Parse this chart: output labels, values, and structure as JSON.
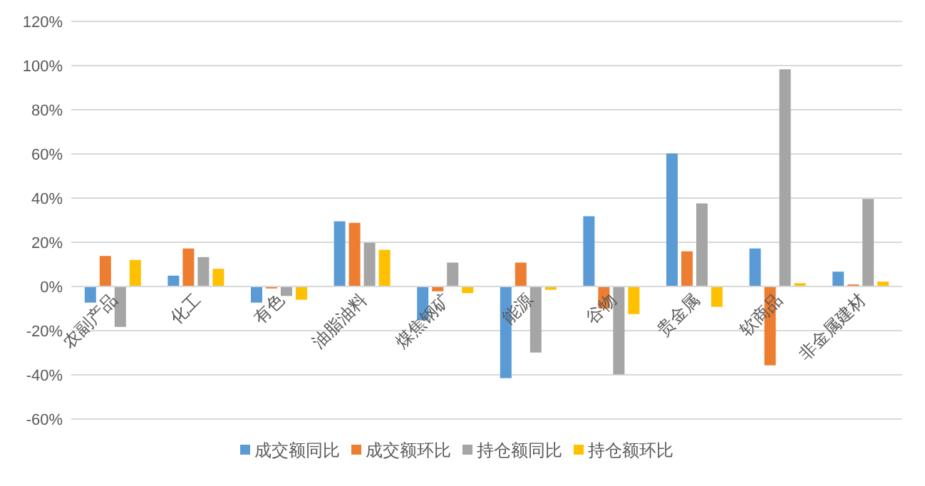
{
  "chart_data": {
    "type": "bar",
    "categories": [
      "农副产品",
      "化工",
      "有色",
      "油脂油料",
      "煤焦钢矿",
      "能源",
      "谷物",
      "贵金属",
      "软商品",
      "非金属建材"
    ],
    "series": [
      {
        "name": "成交额同比",
        "color": "#5b9bd5",
        "values": [
          -7.3,
          4.9,
          -7.3,
          29.5,
          -15.3,
          -41.5,
          31.8,
          60.2,
          17.2,
          6.7
        ]
      },
      {
        "name": "成交额环比",
        "color": "#ed7d31",
        "values": [
          13.8,
          17.2,
          -0.9,
          28.8,
          -2.2,
          10.8,
          -9.9,
          15.9,
          -35.7,
          0.9
        ]
      },
      {
        "name": "持仓额同比",
        "color": "#a5a5a5",
        "values": [
          -18.3,
          13.3,
          -4.3,
          19.8,
          10.8,
          -29.9,
          -39.8,
          37.6,
          98.3,
          39.6
        ]
      },
      {
        "name": "持仓额环比",
        "color": "#ffc000",
        "values": [
          12.0,
          8.0,
          -6.0,
          16.6,
          -3.0,
          -1.5,
          -12.5,
          -9.2,
          1.5,
          2.2
        ]
      }
    ],
    "ylim": [
      -60,
      120
    ],
    "yticks": [
      {
        "value": -60,
        "label": "-60%"
      },
      {
        "value": -40,
        "label": "-40%"
      },
      {
        "value": -20,
        "label": "-20%"
      },
      {
        "value": 0,
        "label": "0%"
      },
      {
        "value": 20,
        "label": "20%"
      },
      {
        "value": 40,
        "label": "40%"
      },
      {
        "value": 60,
        "label": "60%"
      },
      {
        "value": 80,
        "label": "80%"
      },
      {
        "value": 100,
        "label": "100%"
      },
      {
        "value": 120,
        "label": "120%"
      }
    ],
    "grid": "y",
    "legend": "bottom"
  }
}
